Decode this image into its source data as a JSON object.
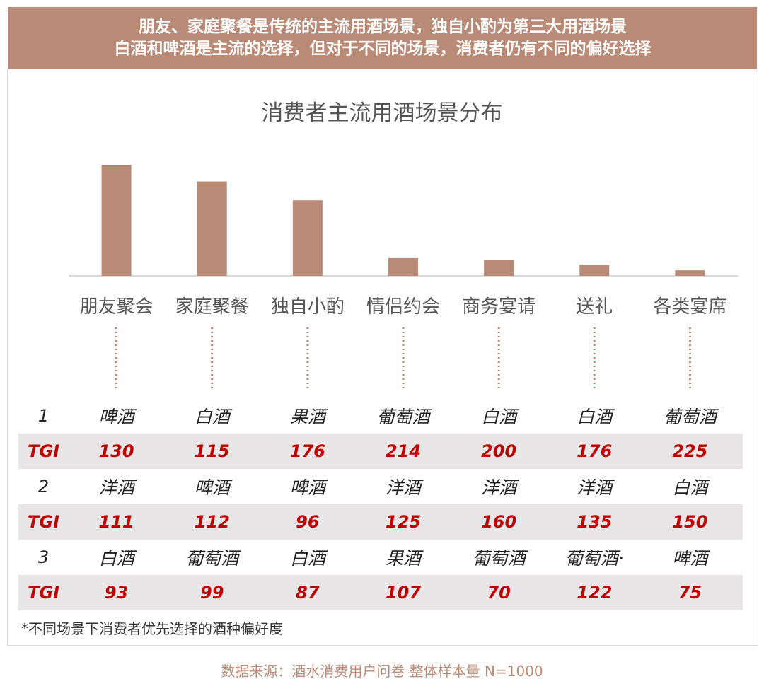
{
  "banner": {
    "line1": "朋友、家庭聚餐是传统的主流用酒场景，独自小酌为第三大用酒场景",
    "line2": "白酒和啤酒是主流的选择，但对于不同的场景，消费者仍有不同的偏好选择"
  },
  "chart_data": {
    "type": "bar",
    "title": "消费者主流用酒场景分布",
    "categories": [
      "朋友聚会",
      "家庭聚餐",
      "独自小酌",
      "情侣约会",
      "商务宴请",
      "送礼",
      "各类宴席"
    ],
    "values": [
      100,
      85,
      68,
      16,
      14,
      10,
      5
    ],
    "ylim": [
      0,
      100
    ],
    "grid": false,
    "colors": {
      "bar": "#b98a76",
      "axis": "#d9d9d9",
      "dots": "#b98a76"
    }
  },
  "table": {
    "rows": [
      {
        "type": "rank",
        "label": "1",
        "values": [
          "啤酒",
          "白酒",
          "果酒",
          "葡萄酒",
          "白酒",
          "白酒",
          "葡萄酒"
        ]
      },
      {
        "type": "tgi",
        "label": "TGI",
        "values": [
          "130",
          "115",
          "176",
          "214",
          "200",
          "176",
          "225"
        ]
      },
      {
        "type": "rank",
        "label": "2",
        "values": [
          "洋酒",
          "啤酒",
          "啤酒",
          "洋酒",
          "洋酒",
          "洋酒",
          "白酒"
        ]
      },
      {
        "type": "tgi",
        "label": "TGI",
        "values": [
          "111",
          "112",
          "96",
          "125",
          "160",
          "135",
          "150"
        ]
      },
      {
        "type": "rank",
        "label": "3",
        "values": [
          "白酒",
          "葡萄酒",
          "白酒",
          "果酒",
          "葡萄酒",
          "葡萄酒·",
          "啤酒"
        ]
      },
      {
        "type": "tgi",
        "label": "TGI",
        "values": [
          "93",
          "99",
          "87",
          "107",
          "70",
          "122",
          "75"
        ]
      }
    ]
  },
  "footnote": "*不同场景下消费者优先选择的酒种偏好度",
  "source": "数据来源：酒水消费用户问卷 整体样本量 N=1000"
}
